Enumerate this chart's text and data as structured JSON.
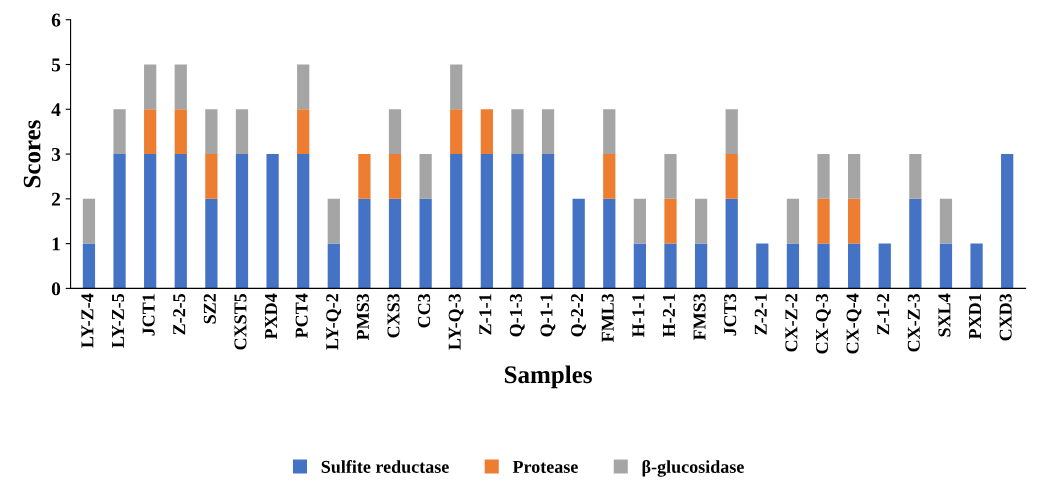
{
  "chart_data": {
    "type": "bar",
    "stacked": true,
    "xlabel": "Samples",
    "ylabel": "Scores",
    "categories": [
      "LY-Z-4",
      "LY-Z-5",
      "JCT1",
      "Z-2-5",
      "SZ2",
      "CXST5",
      "PXD4",
      "PCT4",
      "LY-Q-2",
      "PMS3",
      "CXS3",
      "CC3",
      "LY-Q-3",
      "Z-1-1",
      "Q-1-3",
      "Q-1-1",
      "Q-2-2",
      "FML3",
      "H-1-1",
      "H-2-1",
      "FMS3",
      "JCT3",
      "Z-2-1",
      "CX-Z-2",
      "CX-Q-3",
      "CX-Q-4",
      "Z-1-2",
      "CX-Z-3",
      "SXL4",
      "PXD1",
      "CXD3"
    ],
    "series": [
      {
        "name": "Sulfite reductase",
        "color": "#4472c4",
        "values": [
          1,
          3,
          3,
          3,
          2,
          3,
          3,
          3,
          1,
          2,
          2,
          2,
          3,
          3,
          3,
          3,
          2,
          2,
          1,
          1,
          1,
          2,
          1,
          1,
          1,
          1,
          1,
          2,
          1,
          1,
          3
        ]
      },
      {
        "name": "Protease",
        "color": "#ed7d31",
        "values": [
          0,
          0,
          1,
          1,
          1,
          0,
          0,
          1,
          0,
          1,
          1,
          0,
          1,
          1,
          0,
          0,
          0,
          1,
          0,
          1,
          0,
          1,
          0,
          0,
          1,
          1,
          0,
          0,
          0,
          0,
          0
        ]
      },
      {
        "name": "β-glucosidase",
        "color": "#a5a5a5",
        "values": [
          1,
          1,
          1,
          1,
          1,
          1,
          0,
          1,
          1,
          0,
          1,
          1,
          1,
          0,
          1,
          1,
          0,
          1,
          1,
          1,
          1,
          1,
          0,
          1,
          1,
          1,
          0,
          1,
          1,
          0,
          0
        ]
      }
    ],
    "ylim": [
      0,
      6
    ],
    "yticks": [
      0,
      1,
      2,
      3,
      4,
      5,
      6
    ],
    "grid": false,
    "legend": "bottom"
  }
}
